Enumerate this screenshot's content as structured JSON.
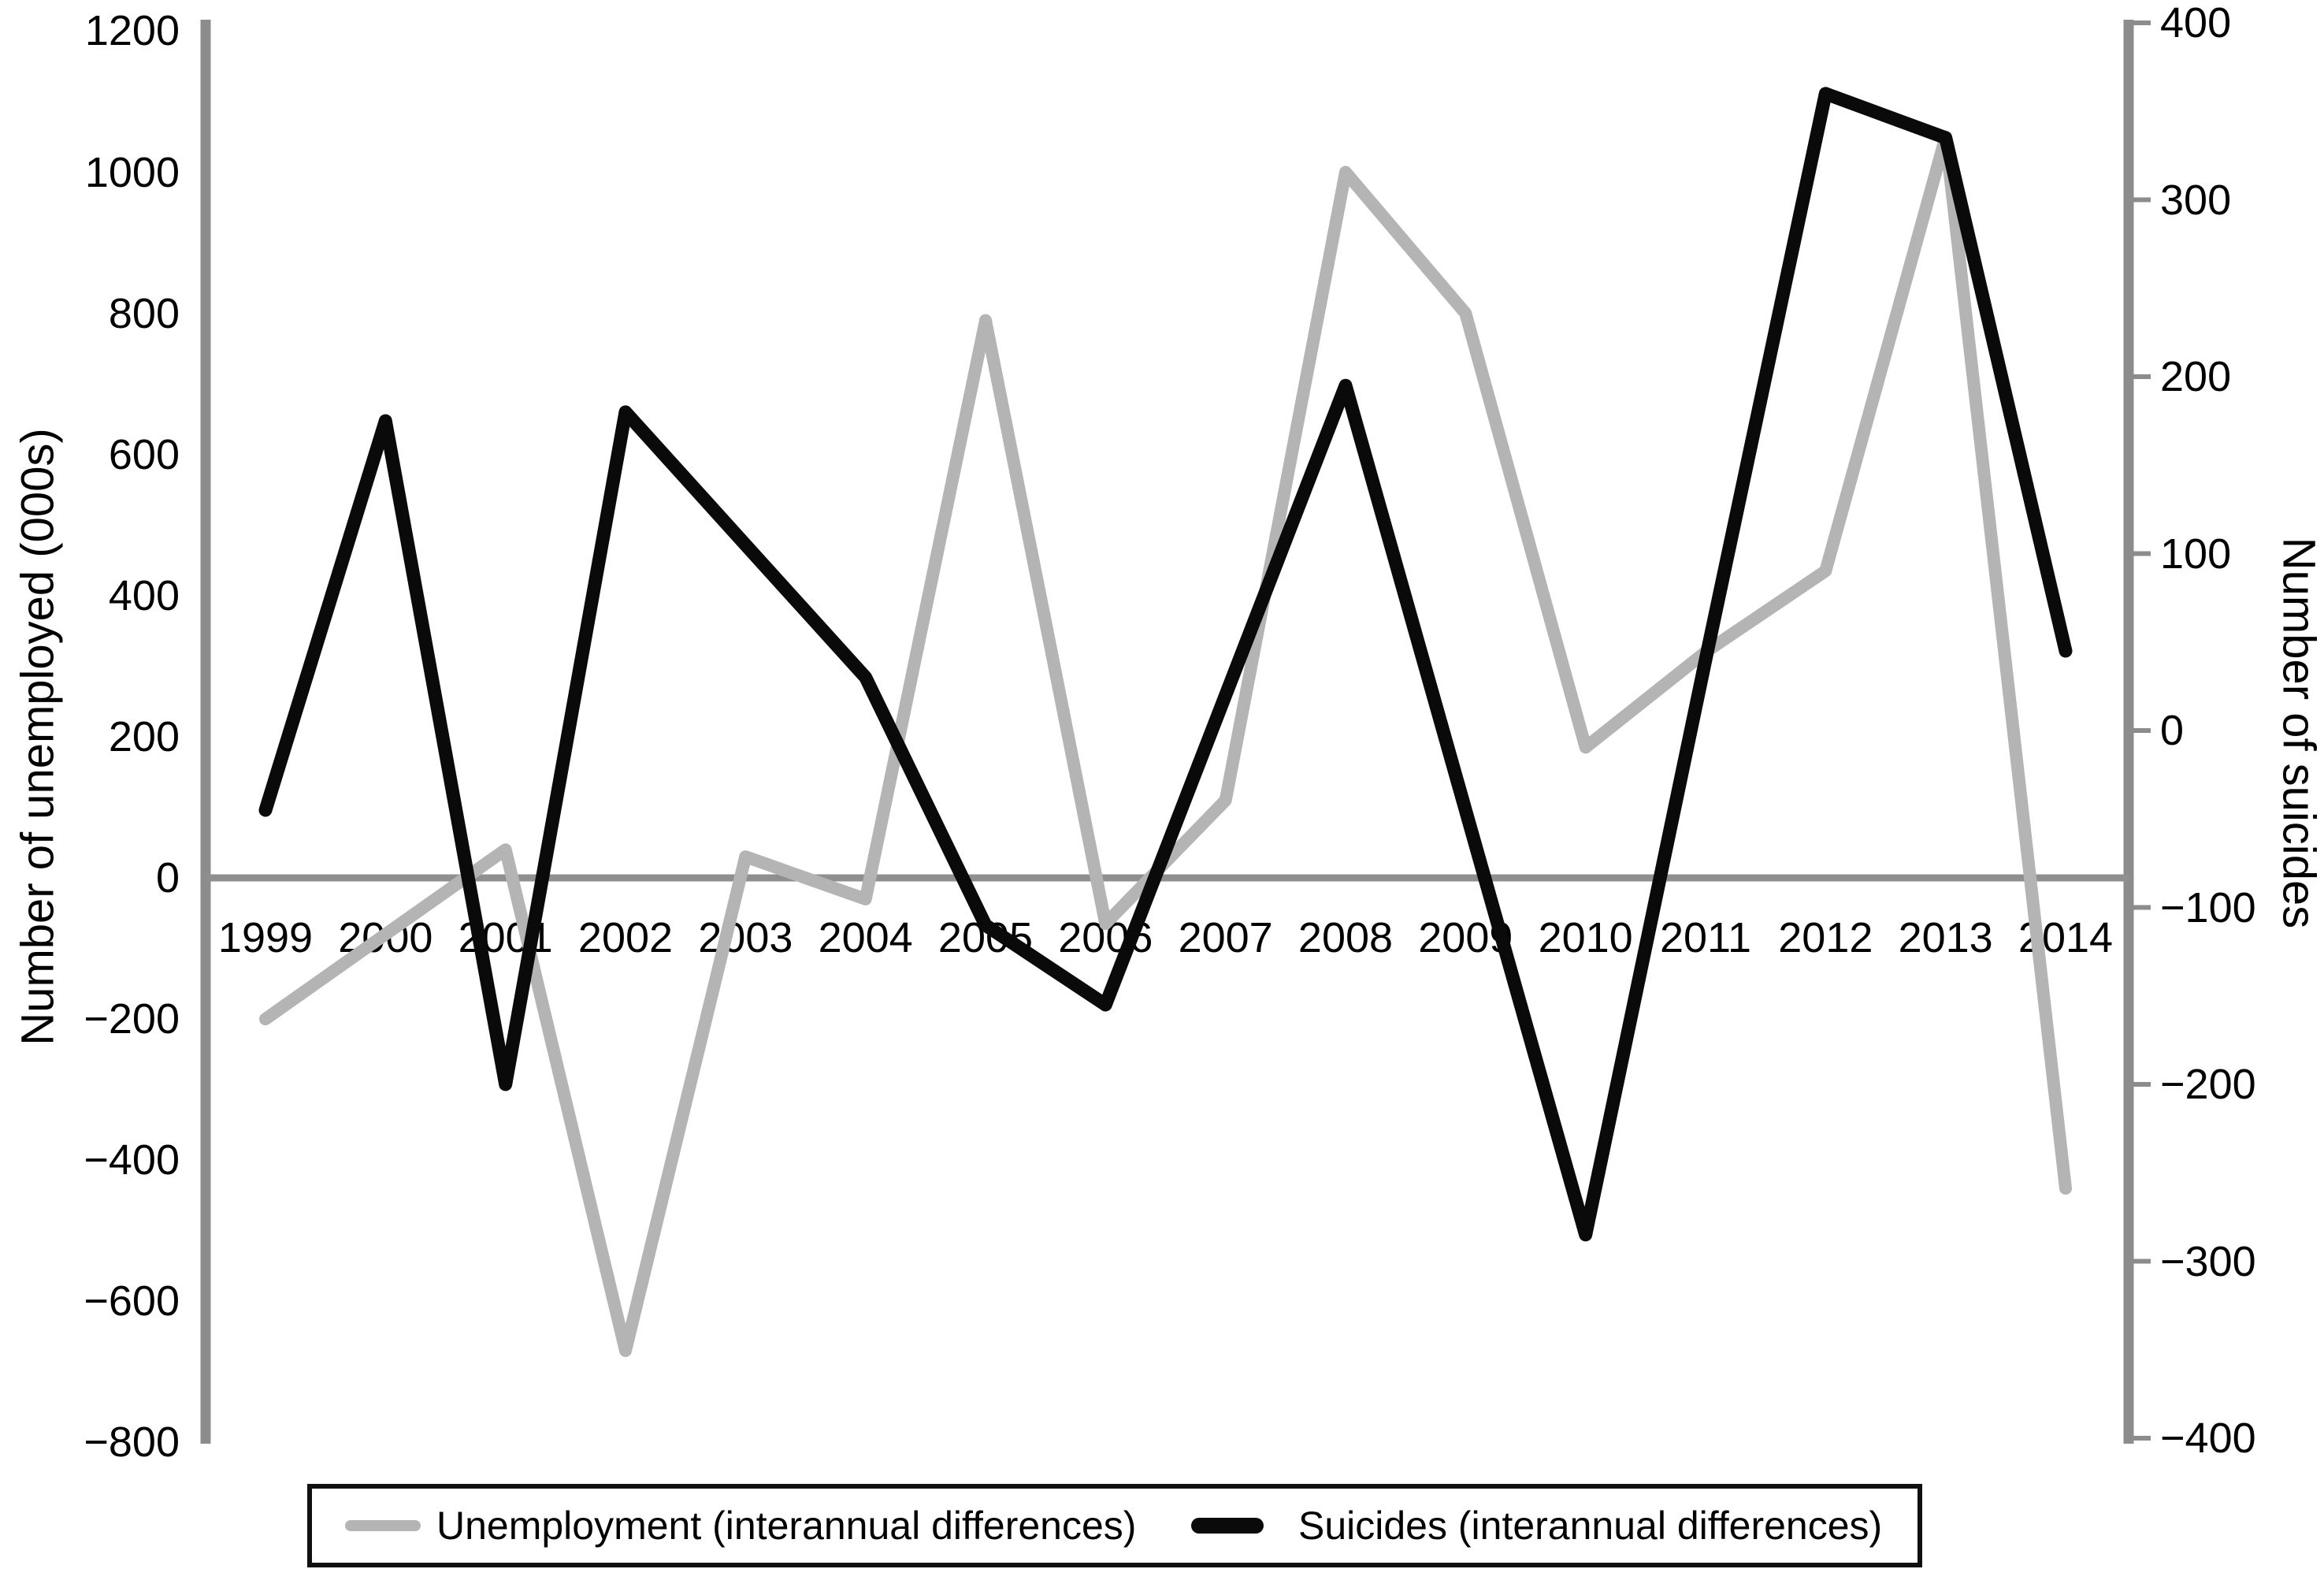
{
  "figure": {
    "background": "#ffffff"
  },
  "axis_titles": {
    "left": "Number of unemployed (000s)",
    "right": "Number of suicides"
  },
  "legend": {
    "items": [
      {
        "label": "Unemployment (interannual differences)",
        "color": "#b4b4b4"
      },
      {
        "label": "Suicides (interannual differences)",
        "color": "#0a0a0a"
      }
    ]
  },
  "chart_data": {
    "type": "line",
    "categories": [
      "1999",
      "2000",
      "2001",
      "2002",
      "2003",
      "2004",
      "2005",
      "2006",
      "2007",
      "2008",
      "2009",
      "2010",
      "2011",
      "2012",
      "2013",
      "2014"
    ],
    "series": [
      {
        "name": "Unemployment (interannual differences)",
        "axis": "left",
        "color": "#b4b4b4",
        "values": [
          -200,
          -80,
          40,
          -670,
          30,
          -30,
          790,
          -65,
          110,
          1000,
          800,
          185,
          320,
          435,
          1050,
          -440
        ]
      },
      {
        "name": "Suicides (interannual differences)",
        "axis": "right",
        "color": "#0a0a0a",
        "values": [
          -45,
          175,
          -200,
          180,
          105,
          30,
          -110,
          -155,
          20,
          195,
          -45,
          -285,
          40,
          360,
          335,
          45
        ]
      }
    ],
    "left_axis": {
      "label": "Number of unemployed (000s)",
      "min": -800,
      "max": 1200,
      "tick_step": 200,
      "ticks": [
        1200,
        1000,
        800,
        600,
        400,
        200,
        0,
        -200,
        -400,
        -600,
        -800
      ]
    },
    "right_axis": {
      "label": "Number of suicides",
      "min": -400,
      "max": 400,
      "tick_step": 100,
      "ticks": [
        400,
        300,
        200,
        100,
        0,
        -100,
        -200,
        -300,
        -400
      ]
    },
    "x_axis": {
      "label": "",
      "ticks": [
        "1999",
        "2000",
        "2001",
        "2002",
        "2003",
        "2004",
        "2005",
        "2006",
        "2007",
        "2008",
        "2009",
        "2010",
        "2011",
        "2012",
        "2013",
        "2014"
      ]
    },
    "grid": false,
    "zero_baseline": true,
    "legend_position": "bottom",
    "axis_color": "#8c8c8c",
    "zero_line_color": "#8f8f8f"
  }
}
